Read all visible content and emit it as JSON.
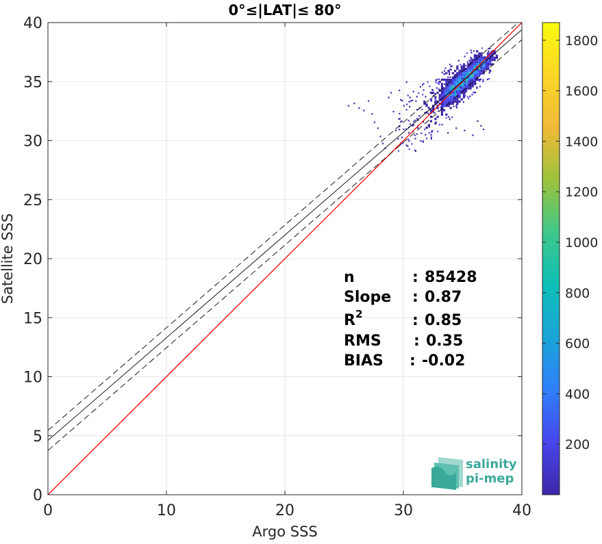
{
  "chart_data": {
    "type": "scatter",
    "subtype": "2d-density-histogram",
    "title": "0°≤|LAT|≤ 80°",
    "xlabel": "Argo SSS",
    "ylabel": "Satellite SSS",
    "xlim": [
      0,
      40
    ],
    "ylim": [
      0,
      40
    ],
    "xticks": [
      0,
      10,
      20,
      30,
      40
    ],
    "yticks": [
      0,
      5,
      10,
      15,
      20,
      25,
      30,
      35,
      40
    ],
    "grid": true,
    "colorbar": {
      "colormap": "parula",
      "range": [
        0,
        1870
      ],
      "ticks": [
        200,
        400,
        600,
        800,
        1000,
        1200,
        1400,
        1600,
        1800
      ],
      "colors": [
        "#3e26a8",
        "#4746eb",
        "#2f7ffb",
        "#1aa5d8",
        "#0ebfb8",
        "#3ec789",
        "#9dc33b",
        "#f0ba38",
        "#fbd626",
        "#f9fb0e"
      ]
    },
    "reference_lines": [
      {
        "kind": "identity",
        "color": "#ff0000",
        "style": "solid",
        "x": [
          0,
          40
        ],
        "y": [
          0,
          40
        ]
      },
      {
        "kind": "regression",
        "color": "#000000",
        "style": "solid",
        "x": [
          0,
          40
        ],
        "y": [
          4.6,
          39.4
        ]
      },
      {
        "kind": "regression-upper",
        "color": "#000000",
        "style": "dashed",
        "x": [
          0,
          40
        ],
        "y": [
          5.45,
          40.25
        ]
      },
      {
        "kind": "regression-lower",
        "color": "#000000",
        "style": "dashed",
        "x": [
          0,
          40
        ],
        "y": [
          3.75,
          38.55
        ]
      }
    ],
    "density": {
      "core": {
        "x_range": [
          31.5,
          37.9
        ],
        "y_range": [
          31.0,
          37.6
        ]
      },
      "sparse_points": [
        [
          25.3,
          32.9
        ],
        [
          25.8,
          33.1
        ],
        [
          26.2,
          32.7
        ],
        [
          26.6,
          32.5
        ],
        [
          27.0,
          33.3
        ],
        [
          27.3,
          32.2
        ],
        [
          27.5,
          31.5
        ],
        [
          27.8,
          31.0
        ],
        [
          28.0,
          30.3
        ],
        [
          28.2,
          29.7
        ],
        [
          28.4,
          29.3
        ],
        [
          28.7,
          33.6
        ],
        [
          28.9,
          34.0
        ],
        [
          29.1,
          32.4
        ],
        [
          29.3,
          30.8
        ],
        [
          29.5,
          30.1
        ],
        [
          29.8,
          31.6
        ],
        [
          30.0,
          32.9
        ],
        [
          30.2,
          34.9
        ],
        [
          30.5,
          33.6
        ],
        [
          30.7,
          31.2
        ],
        [
          30.9,
          30.4
        ],
        [
          31.1,
          31.8
        ],
        [
          31.3,
          32.7
        ],
        [
          29.6,
          34.2
        ],
        [
          30.4,
          30.6
        ],
        [
          31.0,
          33.3
        ],
        [
          31.6,
          29.9
        ],
        [
          36.5,
          31.2
        ],
        [
          36.7,
          30.9
        ],
        [
          36.2,
          31.6
        ],
        [
          35.8,
          30.4
        ],
        [
          35.1,
          30.8
        ],
        [
          34.4,
          31.0
        ],
        [
          33.7,
          30.6
        ],
        [
          33.2,
          31.3
        ],
        [
          32.7,
          31.5
        ],
        [
          32.3,
          30.1
        ]
      ]
    },
    "stats": [
      {
        "label": "n",
        "sep": ":",
        "value": "85428"
      },
      {
        "label": "Slope",
        "sep": ":",
        "value": "0.87"
      },
      {
        "label": "R",
        "sup": "2",
        "sep": ":",
        "value": "0.85"
      },
      {
        "label": "RMS",
        "sep": ":",
        "value": "0.35"
      },
      {
        "label": "BIAS",
        "sep": ":",
        "value": "-0.02"
      }
    ],
    "logo": {
      "line1": "salinity",
      "line2": "pi-mep",
      "color": "#3aa89a"
    }
  }
}
